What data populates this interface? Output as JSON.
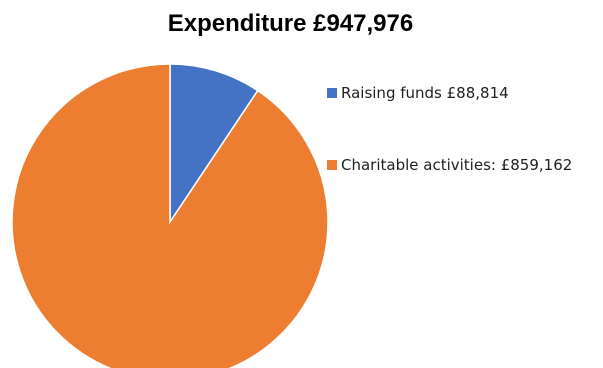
{
  "chart_data": {
    "type": "pie",
    "title": "Expenditure £947,976",
    "slices": [
      {
        "label": "Raising funds £88,814",
        "value": 88814,
        "color": "#4472C4"
      },
      {
        "label": "Charitable activities: £859,162",
        "value": 859162,
        "color": "#ED7D31"
      }
    ],
    "start_angle_deg": 0,
    "direction": "clockwise",
    "legend_position": "right"
  }
}
